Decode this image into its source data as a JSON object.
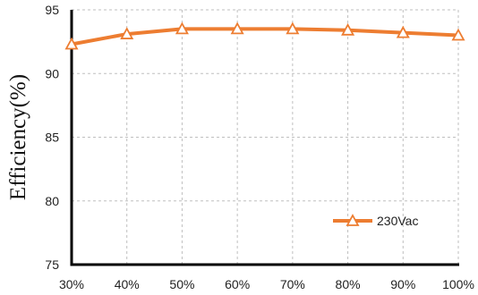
{
  "chart_data": {
    "type": "line",
    "title": "",
    "xlabel": "",
    "ylabel": "Efficiency(%)",
    "categories": [
      "30%",
      "40%",
      "50%",
      "60%",
      "70%",
      "80%",
      "90%",
      "100%"
    ],
    "series": [
      {
        "name": "230Vac",
        "values": [
          92.3,
          93.1,
          93.5,
          93.5,
          93.5,
          93.4,
          93.2,
          93.0
        ],
        "color": "#ED7D31",
        "marker": "triangle"
      }
    ],
    "y_ticks": [
      75,
      80,
      85,
      90,
      95
    ],
    "ylim": [
      75,
      95
    ],
    "grid": true,
    "grid_style": "dashed",
    "legend_position": "bottom-right"
  }
}
